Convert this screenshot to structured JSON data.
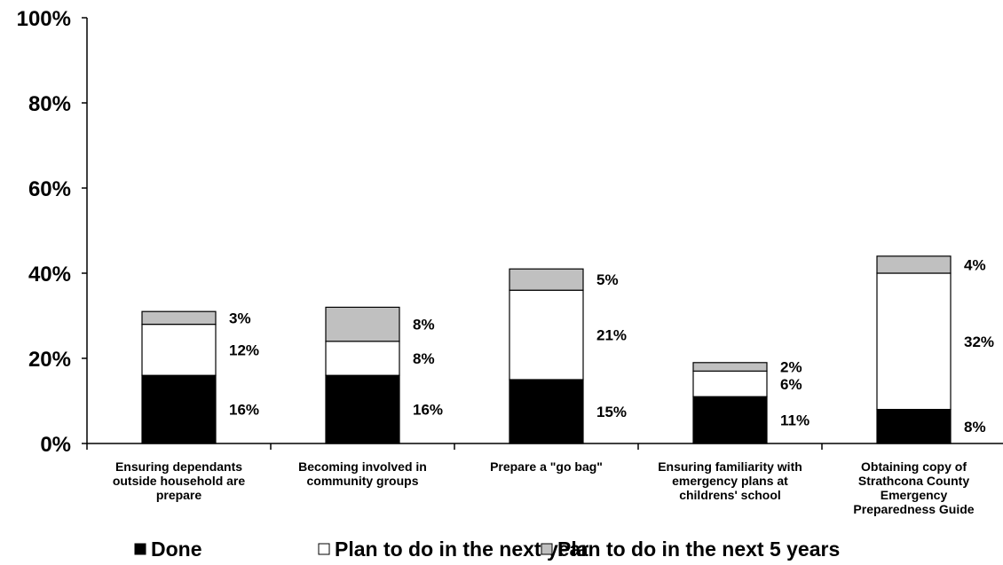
{
  "chart_data": {
    "type": "bar",
    "stacked": true,
    "categories": [
      [
        "Ensuring dependants",
        "outside household are",
        "prepare"
      ],
      [
        "Becoming involved in",
        "community groups"
      ],
      [
        "Prepare a \"go bag\""
      ],
      [
        "Ensuring familiarity with",
        "emergency plans at",
        "childrens' school"
      ],
      [
        "Obtaining copy of",
        "Strathcona County",
        "Emergency",
        "Preparedness Guide"
      ]
    ],
    "series": [
      {
        "name": "Done",
        "values": [
          16,
          16,
          15,
          11,
          8
        ],
        "labels": [
          "16%",
          "16%",
          "15%",
          "11%",
          "8%"
        ],
        "color": "#000000"
      },
      {
        "name": "Plan to do in the next year",
        "values": [
          12,
          8,
          21,
          6,
          32
        ],
        "labels": [
          "12%",
          "8%",
          "21%",
          "6%",
          "32%"
        ],
        "color": "#ffffff"
      },
      {
        "name": "Plan to do in the next 5 years",
        "values": [
          3,
          8,
          5,
          2,
          4
        ],
        "labels": [
          "3%",
          "8%",
          "5%",
          "2%",
          "4%"
        ],
        "color": "#c0c0c0"
      }
    ],
    "yticks": [
      "0%",
      "20%",
      "40%",
      "60%",
      "80%",
      "100%"
    ],
    "ylim": [
      0,
      100
    ],
    "grid": false,
    "legend_position": "bottom",
    "title": "",
    "xlabel": "",
    "ylabel": ""
  }
}
